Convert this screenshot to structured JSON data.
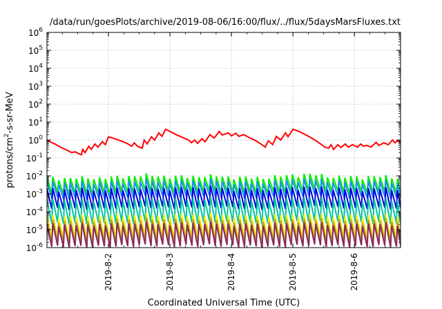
{
  "chart_data": {
    "type": "line",
    "title": "/data/run/goesPlots/archive/2019-08-06/16:00/flux/../flux/5daysMarsFluxes.txt",
    "xlabel": "Coordinated Universal Time (UTC)",
    "ylabel": {
      "base": "protons/cm",
      "sup": "2",
      "rest": "-s-sr-MeV"
    },
    "x_range_days": [
      0,
      5.75
    ],
    "x_ticks": [
      {
        "day": 1,
        "label": "2019-8-2"
      },
      {
        "day": 2,
        "label": "2019-8-3"
      },
      {
        "day": 3,
        "label": "2019-8-4"
      },
      {
        "day": 4,
        "label": "2019-8-5"
      },
      {
        "day": 5,
        "label": "2019-8-6"
      }
    ],
    "y_scale": "log",
    "ylim": [
      1e-06,
      1000000.0
    ],
    "y_ticks": [
      {
        "exp": -6,
        "label": "10",
        "sup": "-6"
      },
      {
        "exp": -5,
        "label": "10",
        "sup": "-5"
      },
      {
        "exp": -4,
        "label": "10",
        "sup": "-4"
      },
      {
        "exp": -3,
        "label": "10",
        "sup": "-3"
      },
      {
        "exp": -2,
        "label": "10",
        "sup": "-2"
      },
      {
        "exp": -1,
        "label": "10",
        "sup": "-1"
      },
      {
        "exp": 0,
        "label": "10",
        "sup": "0"
      },
      {
        "exp": 1,
        "label": "10",
        "sup": "1"
      },
      {
        "exp": 2,
        "label": "10",
        "sup": "2"
      },
      {
        "exp": 3,
        "label": "10",
        "sup": "3"
      },
      {
        "exp": 4,
        "label": "10",
        "sup": "4"
      },
      {
        "exp": 5,
        "label": "10",
        "sup": "5"
      },
      {
        "exp": 6,
        "label": "10",
        "sup": "6"
      }
    ],
    "grid": true,
    "series": [
      {
        "color": "#ff0000",
        "points": [
          [
            0.0,
            1.0
          ],
          [
            0.05,
            0.8
          ],
          [
            0.13,
            0.6
          ],
          [
            0.22,
            0.4
          ],
          [
            0.3,
            0.3
          ],
          [
            0.4,
            0.2
          ],
          [
            0.46,
            0.22
          ],
          [
            0.52,
            0.17
          ],
          [
            0.56,
            0.15
          ],
          [
            0.58,
            0.3
          ],
          [
            0.62,
            0.2
          ],
          [
            0.68,
            0.45
          ],
          [
            0.72,
            0.3
          ],
          [
            0.78,
            0.6
          ],
          [
            0.83,
            0.4
          ],
          [
            0.9,
            0.8
          ],
          [
            0.95,
            0.55
          ],
          [
            1.0,
            1.5
          ],
          [
            1.1,
            1.2
          ],
          [
            1.2,
            0.9
          ],
          [
            1.3,
            0.65
          ],
          [
            1.38,
            0.45
          ],
          [
            1.42,
            0.7
          ],
          [
            1.47,
            0.45
          ],
          [
            1.55,
            0.35
          ],
          [
            1.58,
            1.0
          ],
          [
            1.63,
            0.6
          ],
          [
            1.7,
            1.5
          ],
          [
            1.75,
            1.0
          ],
          [
            1.82,
            2.5
          ],
          [
            1.87,
            1.6
          ],
          [
            1.93,
            4.0
          ],
          [
            2.0,
            3.0
          ],
          [
            2.1,
            2.0
          ],
          [
            2.2,
            1.4
          ],
          [
            2.3,
            1.0
          ],
          [
            2.35,
            0.7
          ],
          [
            2.4,
            1.0
          ],
          [
            2.45,
            0.65
          ],
          [
            2.52,
            1.2
          ],
          [
            2.57,
            0.8
          ],
          [
            2.65,
            2.0
          ],
          [
            2.72,
            1.3
          ],
          [
            2.8,
            3.0
          ],
          [
            2.85,
            1.9
          ],
          [
            2.95,
            2.5
          ],
          [
            3.0,
            1.7
          ],
          [
            3.07,
            2.4
          ],
          [
            3.12,
            1.6
          ],
          [
            3.2,
            2.0
          ],
          [
            3.3,
            1.3
          ],
          [
            3.4,
            0.9
          ],
          [
            3.48,
            0.6
          ],
          [
            3.55,
            0.4
          ],
          [
            3.6,
            0.9
          ],
          [
            3.67,
            0.55
          ],
          [
            3.73,
            1.6
          ],
          [
            3.8,
            1.0
          ],
          [
            3.88,
            2.5
          ],
          [
            3.92,
            1.5
          ],
          [
            4.0,
            4.0
          ],
          [
            4.1,
            3.0
          ],
          [
            4.2,
            2.0
          ],
          [
            4.3,
            1.3
          ],
          [
            4.38,
            0.9
          ],
          [
            4.45,
            0.6
          ],
          [
            4.52,
            0.4
          ],
          [
            4.58,
            0.35
          ],
          [
            4.62,
            0.55
          ],
          [
            4.66,
            0.3
          ],
          [
            4.73,
            0.55
          ],
          [
            4.78,
            0.38
          ],
          [
            4.85,
            0.6
          ],
          [
            4.9,
            0.4
          ],
          [
            4.97,
            0.55
          ],
          [
            5.05,
            0.4
          ],
          [
            5.1,
            0.6
          ],
          [
            5.15,
            0.45
          ],
          [
            5.2,
            0.5
          ],
          [
            5.27,
            0.4
          ],
          [
            5.35,
            0.75
          ],
          [
            5.4,
            0.5
          ],
          [
            5.48,
            0.7
          ],
          [
            5.55,
            0.55
          ],
          [
            5.62,
            1.0
          ],
          [
            5.66,
            0.7
          ],
          [
            5.7,
            0.9
          ],
          [
            5.75,
            0.75
          ]
        ]
      },
      {
        "color": "#00ee00",
        "base": 0.004,
        "drop": 0.25,
        "amp": 1.9,
        "period": 0.095,
        "bumps": [
          [
            1.6,
            1.4
          ],
          [
            2.6,
            1.3
          ],
          [
            4.2,
            1.6
          ],
          [
            5.3,
            1.2
          ]
        ]
      },
      {
        "color": "#1f8fff",
        "base": 0.0022,
        "drop": 0.25,
        "amp": 1.9,
        "period": 0.095,
        "bumps": [
          [
            1.6,
            1.3
          ],
          [
            2.6,
            1.3
          ],
          [
            4.2,
            1.5
          ],
          [
            5.3,
            1.2
          ]
        ]
      },
      {
        "color": "#0000dd",
        "base": 0.0008,
        "drop": 0.18,
        "amp": 2.2,
        "period": 0.095,
        "bumps": [
          [
            1.6,
            1.2
          ],
          [
            2.6,
            1.3
          ],
          [
            4.2,
            1.3
          ],
          [
            5.3,
            1.1
          ]
        ]
      },
      {
        "color": "#00c4a0",
        "base": 0.00018,
        "drop": 0.12,
        "amp": 2.5,
        "period": 0.095,
        "bumps": [
          [
            1.6,
            1.2
          ],
          [
            2.6,
            1.2
          ],
          [
            4.2,
            1.3
          ],
          [
            5.3,
            1.1
          ]
        ]
      },
      {
        "color": "#ffee00",
        "base": 2.2e-05,
        "drop": 0.15,
        "amp": 2.6,
        "period": 0.095,
        "bumps": [
          [
            1.6,
            1.2
          ],
          [
            2.6,
            1.2
          ],
          [
            4.2,
            1.2
          ],
          [
            5.3,
            1.1
          ]
        ]
      },
      {
        "color": "#b8a030",
        "base": 1.3e-05,
        "drop": 0.15,
        "amp": 2.4,
        "period": 0.095,
        "bumps": [
          [
            1.6,
            1.2
          ],
          [
            2.6,
            1.2
          ],
          [
            4.2,
            1.2
          ],
          [
            5.3,
            1.1
          ]
        ]
      },
      {
        "color": "#8b2a5a",
        "base": 8e-06,
        "drop": 0.14,
        "amp": 2.4,
        "period": 0.095,
        "bumps": [
          [
            1.6,
            1.2
          ],
          [
            2.6,
            1.2
          ],
          [
            4.2,
            1.2
          ],
          [
            5.3,
            1.1
          ]
        ]
      }
    ]
  }
}
